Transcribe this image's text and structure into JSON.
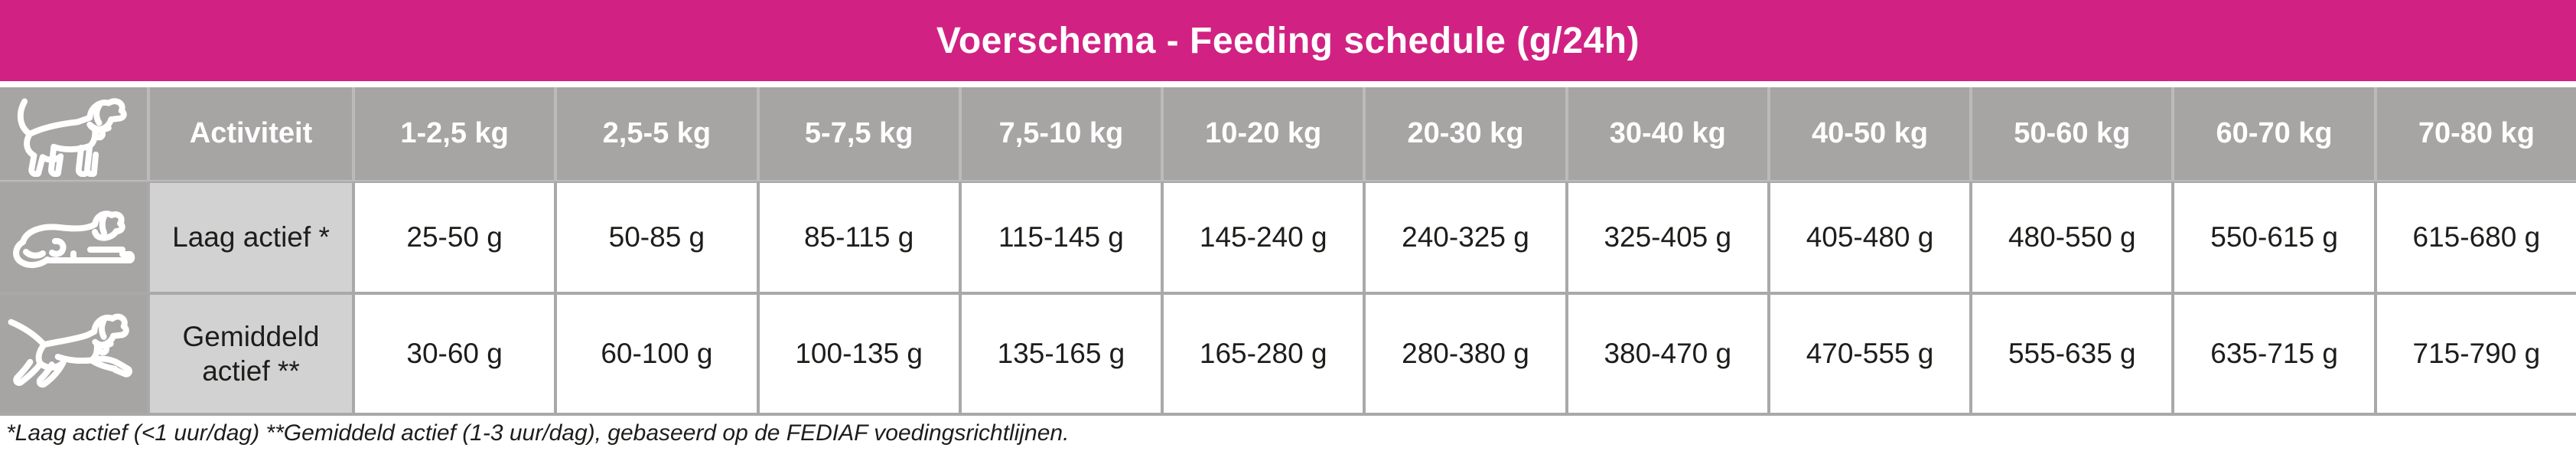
{
  "title": "Voerschema - Feeding schedule (g/24h)",
  "table": {
    "corner_icon": "standing-dog-icon",
    "activity_header": "Activiteit",
    "weight_headers": [
      "1-2,5 kg",
      "2,5-5 kg",
      "5-7,5 kg",
      "7,5-10 kg",
      "10-20 kg",
      "20-30 kg",
      "30-40 kg",
      "40-50 kg",
      "50-60 kg",
      "60-70 kg",
      "70-80 kg"
    ],
    "rows": [
      {
        "icon": "lying-dog-icon",
        "activity": "Laag actief *",
        "values": [
          "25-50 g",
          "50-85 g",
          "85-115 g",
          "115-145 g",
          "145-240 g",
          "240-325 g",
          "325-405 g",
          "405-480 g",
          "480-550 g",
          "550-615 g",
          "615-680 g"
        ]
      },
      {
        "icon": "running-dog-icon",
        "activity": "Gemiddeld actief **",
        "values": [
          "30-60 g",
          "60-100 g",
          "100-135 g",
          "135-165 g",
          "165-280 g",
          "280-380 g",
          "380-470 g",
          "470-555 g",
          "555-635 g",
          "635-715 g",
          "715-790 g"
        ]
      }
    ]
  },
  "footnote": "*Laag actief (<1 uur/dag)  **Gemiddeld actief (1-3 uur/dag), gebaseerd op de FEDIAF voedingsrichtlijnen.",
  "colors": {
    "brand_pink": "#d12283",
    "header_gray": "#a7a4a4",
    "activity_gray": "#d3d2d2",
    "grid_line_gray": "#a9a9a9",
    "text_dark": "#1d1d1b"
  }
}
